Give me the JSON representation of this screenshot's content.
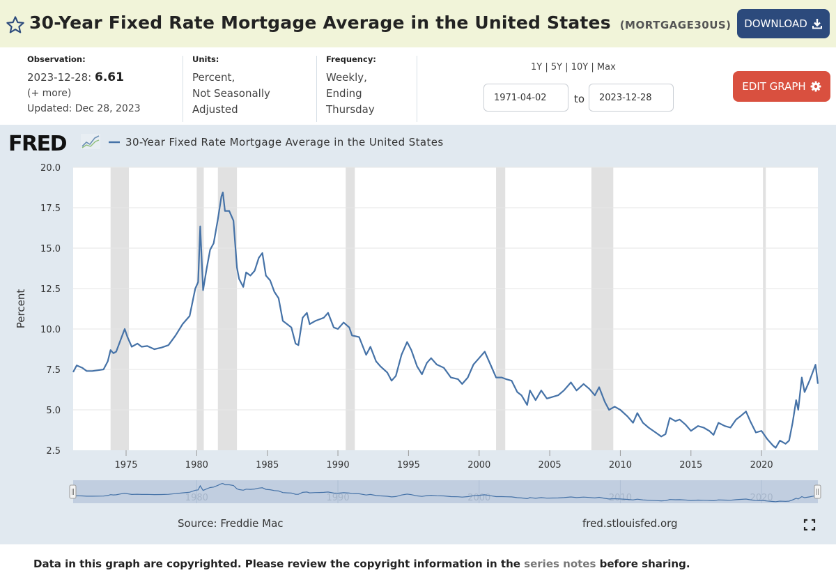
{
  "header": {
    "title": "30-Year Fixed Rate Mortgage Average in the United States",
    "series_id": "(MORTGAGE30US)",
    "download_label": "DOWNLOAD"
  },
  "meta": {
    "observation_label": "Observation:",
    "observation_date": "2023-12-28:",
    "observation_value": "6.61",
    "more": "(+ more)",
    "updated": "Updated: Dec 28, 2023",
    "units_label": "Units:",
    "units_lines": [
      "Percent,",
      "Not Seasonally",
      "Adjusted"
    ],
    "frequency_label": "Frequency:",
    "frequency_lines": [
      "Weekly,",
      "Ending",
      "Thursday"
    ]
  },
  "controls": {
    "ranges": [
      "1Y",
      "5Y",
      "10Y",
      "Max"
    ],
    "range_separator": " | ",
    "start_date": "1971-04-02",
    "to_label": "to",
    "end_date": "2023-12-28",
    "edit_label": "EDIT GRAPH"
  },
  "chart": {
    "brand": "FRED",
    "source": "Source: Freddie Mac",
    "site": "fred.stlouisfed.org"
  },
  "footer": {
    "before": "Data in this graph are copyrighted. Please review the copyright information in the ",
    "link": "series notes",
    "after": " before sharing."
  },
  "colors": {
    "line": "#4572a7",
    "recession": "#e1e1e1",
    "download": "#2c4a7c",
    "edit": "#d9503f",
    "panel": "#e1e9f0"
  },
  "chart_data": {
    "type": "line",
    "legend": "30-Year Fixed Rate Mortgage Average in the United States",
    "ylabel": "Percent",
    "xlim": [
      1971.25,
      2023.99
    ],
    "ylim": [
      2.5,
      20.0
    ],
    "yticks": [
      "2.5",
      "5.0",
      "7.5",
      "10.0",
      "12.5",
      "15.0",
      "17.5",
      "20.0"
    ],
    "xticks": [
      "1975",
      "1980",
      "1985",
      "1990",
      "1995",
      "2000",
      "2005",
      "2010",
      "2015",
      "2020"
    ],
    "navigator_ticks": [
      "1980",
      "1990",
      "2000",
      "2010",
      "2020"
    ],
    "recessions": [
      [
        1973.9,
        1975.2
      ],
      [
        1980.0,
        1980.5
      ],
      [
        1981.5,
        1982.85
      ],
      [
        1990.55,
        1991.2
      ],
      [
        2001.2,
        2001.85
      ],
      [
        2007.95,
        2009.5
      ],
      [
        2020.1,
        2020.3
      ]
    ],
    "series": [
      {
        "name": "30-Year Fixed Rate Mortgage Average in the United States",
        "points": [
          [
            1971.25,
            7.33
          ],
          [
            1971.5,
            7.75
          ],
          [
            1971.9,
            7.6
          ],
          [
            1972.2,
            7.4
          ],
          [
            1972.6,
            7.4
          ],
          [
            1973.0,
            7.45
          ],
          [
            1973.4,
            7.5
          ],
          [
            1973.7,
            8.0
          ],
          [
            1973.9,
            8.7
          ],
          [
            1974.1,
            8.5
          ],
          [
            1974.3,
            8.6
          ],
          [
            1974.6,
            9.3
          ],
          [
            1974.9,
            10.0
          ],
          [
            1975.1,
            9.5
          ],
          [
            1975.4,
            8.9
          ],
          [
            1975.8,
            9.1
          ],
          [
            1976.1,
            8.9
          ],
          [
            1976.5,
            8.95
          ],
          [
            1977.0,
            8.75
          ],
          [
            1977.5,
            8.85
          ],
          [
            1978.0,
            9.0
          ],
          [
            1978.5,
            9.6
          ],
          [
            1979.0,
            10.3
          ],
          [
            1979.5,
            10.8
          ],
          [
            1979.9,
            12.5
          ],
          [
            1980.1,
            12.9
          ],
          [
            1980.25,
            16.35
          ],
          [
            1980.45,
            12.4
          ],
          [
            1980.7,
            13.7
          ],
          [
            1980.95,
            14.9
          ],
          [
            1981.2,
            15.3
          ],
          [
            1981.5,
            16.8
          ],
          [
            1981.75,
            18.2
          ],
          [
            1981.85,
            18.45
          ],
          [
            1982.0,
            17.3
          ],
          [
            1982.3,
            17.3
          ],
          [
            1982.6,
            16.7
          ],
          [
            1982.85,
            13.8
          ],
          [
            1983.0,
            13.1
          ],
          [
            1983.3,
            12.6
          ],
          [
            1983.5,
            13.5
          ],
          [
            1983.8,
            13.3
          ],
          [
            1984.1,
            13.6
          ],
          [
            1984.4,
            14.4
          ],
          [
            1984.65,
            14.7
          ],
          [
            1984.9,
            13.3
          ],
          [
            1985.2,
            13.0
          ],
          [
            1985.5,
            12.3
          ],
          [
            1985.8,
            11.9
          ],
          [
            1986.1,
            10.5
          ],
          [
            1986.4,
            10.3
          ],
          [
            1986.7,
            10.1
          ],
          [
            1987.0,
            9.1
          ],
          [
            1987.2,
            9.0
          ],
          [
            1987.5,
            10.7
          ],
          [
            1987.8,
            11.0
          ],
          [
            1988.0,
            10.3
          ],
          [
            1988.4,
            10.5
          ],
          [
            1988.7,
            10.6
          ],
          [
            1989.0,
            10.7
          ],
          [
            1989.3,
            11.0
          ],
          [
            1989.7,
            10.1
          ],
          [
            1990.0,
            10.0
          ],
          [
            1990.4,
            10.4
          ],
          [
            1990.8,
            10.1
          ],
          [
            1991.0,
            9.6
          ],
          [
            1991.5,
            9.5
          ],
          [
            1992.0,
            8.4
          ],
          [
            1992.3,
            8.9
          ],
          [
            1992.7,
            8.0
          ],
          [
            1993.0,
            7.7
          ],
          [
            1993.5,
            7.3
          ],
          [
            1993.8,
            6.8
          ],
          [
            1994.1,
            7.1
          ],
          [
            1994.5,
            8.4
          ],
          [
            1994.9,
            9.2
          ],
          [
            1995.2,
            8.7
          ],
          [
            1995.6,
            7.7
          ],
          [
            1995.95,
            7.2
          ],
          [
            1996.3,
            7.9
          ],
          [
            1996.6,
            8.2
          ],
          [
            1997.0,
            7.8
          ],
          [
            1997.5,
            7.6
          ],
          [
            1998.0,
            7.0
          ],
          [
            1998.5,
            6.9
          ],
          [
            1998.8,
            6.6
          ],
          [
            1999.2,
            7.0
          ],
          [
            1999.6,
            7.8
          ],
          [
            2000.0,
            8.2
          ],
          [
            2000.4,
            8.6
          ],
          [
            2000.8,
            7.8
          ],
          [
            2001.2,
            7.0
          ],
          [
            2001.6,
            7.0
          ],
          [
            2001.9,
            6.9
          ],
          [
            2002.3,
            6.8
          ],
          [
            2002.7,
            6.1
          ],
          [
            2003.0,
            5.9
          ],
          [
            2003.4,
            5.3
          ],
          [
            2003.6,
            6.2
          ],
          [
            2004.0,
            5.6
          ],
          [
            2004.4,
            6.2
          ],
          [
            2004.8,
            5.7
          ],
          [
            2005.2,
            5.8
          ],
          [
            2005.6,
            5.9
          ],
          [
            2006.0,
            6.2
          ],
          [
            2006.5,
            6.7
          ],
          [
            2006.9,
            6.2
          ],
          [
            2007.4,
            6.6
          ],
          [
            2007.8,
            6.3
          ],
          [
            2008.2,
            5.9
          ],
          [
            2008.5,
            6.4
          ],
          [
            2008.9,
            5.5
          ],
          [
            2009.2,
            5.0
          ],
          [
            2009.6,
            5.2
          ],
          [
            2010.0,
            5.0
          ],
          [
            2010.5,
            4.6
          ],
          [
            2010.9,
            4.2
          ],
          [
            2011.2,
            4.8
          ],
          [
            2011.6,
            4.2
          ],
          [
            2012.0,
            3.9
          ],
          [
            2012.5,
            3.6
          ],
          [
            2012.9,
            3.35
          ],
          [
            2013.2,
            3.5
          ],
          [
            2013.5,
            4.5
          ],
          [
            2013.9,
            4.3
          ],
          [
            2014.2,
            4.4
          ],
          [
            2014.6,
            4.1
          ],
          [
            2015.0,
            3.7
          ],
          [
            2015.5,
            4.0
          ],
          [
            2015.9,
            3.9
          ],
          [
            2016.3,
            3.7
          ],
          [
            2016.6,
            3.45
          ],
          [
            2016.95,
            4.2
          ],
          [
            2017.4,
            4.0
          ],
          [
            2017.8,
            3.9
          ],
          [
            2018.2,
            4.4
          ],
          [
            2018.5,
            4.6
          ],
          [
            2018.9,
            4.9
          ],
          [
            2019.2,
            4.3
          ],
          [
            2019.6,
            3.6
          ],
          [
            2020.0,
            3.7
          ],
          [
            2020.4,
            3.2
          ],
          [
            2020.8,
            2.8
          ],
          [
            2021.0,
            2.65
          ],
          [
            2021.3,
            3.1
          ],
          [
            2021.7,
            2.9
          ],
          [
            2021.95,
            3.1
          ],
          [
            2022.2,
            4.2
          ],
          [
            2022.45,
            5.6
          ],
          [
            2022.6,
            5.0
          ],
          [
            2022.85,
            7.0
          ],
          [
            2023.05,
            6.1
          ],
          [
            2023.4,
            6.8
          ],
          [
            2023.82,
            7.79
          ],
          [
            2023.99,
            6.61
          ]
        ]
      }
    ]
  }
}
